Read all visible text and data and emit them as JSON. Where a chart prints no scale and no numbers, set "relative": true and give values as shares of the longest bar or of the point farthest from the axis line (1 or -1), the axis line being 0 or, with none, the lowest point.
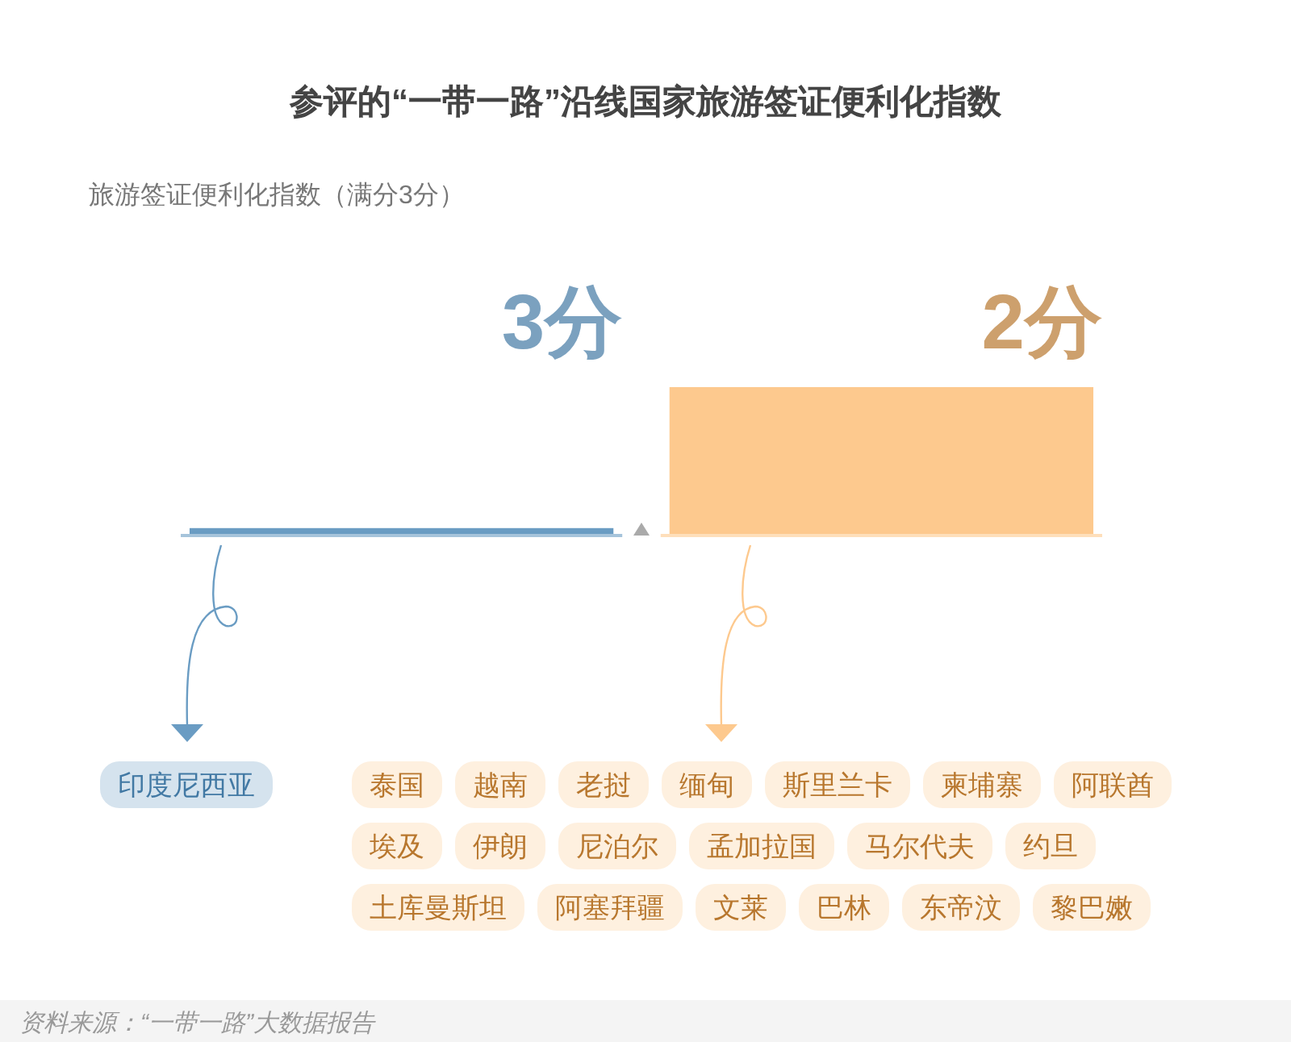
{
  "chart_data": {
    "type": "bar",
    "title": "参评的“一带一路”沿线国家旅游签证便利化指数",
    "subtitle": "旅游签证便利化指数（满分3分）",
    "categories": [
      "3分",
      "2分"
    ],
    "values": [
      0.05,
      1
    ],
    "colors": [
      "#6a9cc3",
      "#fdc98e"
    ],
    "relative": true,
    "annotations": [
      "印度尼西亚",
      "泰国",
      "越南",
      "老挝",
      "缅甸",
      "斯里兰卡",
      "柬埔寨",
      "阿联酋",
      "埃及",
      "伊朗",
      "尼泊尔",
      "孟加拉国",
      "马尔代夫",
      "约旦",
      "土库曼斯坦",
      "阿塞拜疆",
      "文莱",
      "巴林",
      "东帝汶",
      "黎巴嫩",
      "资料来源：“一带一路”大数据报告"
    ]
  }
}
